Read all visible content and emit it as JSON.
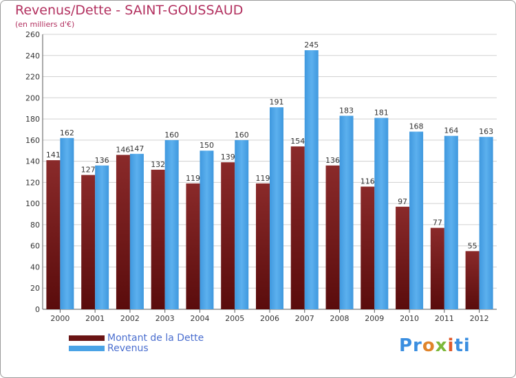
{
  "title": "Revenus/Dette - SAINT-GOUSSAUD",
  "subtitle": "(en milliers d'€)",
  "logo_text": "Proxiti",
  "colors": {
    "title": "#b2305f",
    "dette": "#7a1c1c",
    "revenus": "#4aa3e6",
    "legend_text": "#4a6ecf",
    "grid": "#d0d0d0"
  },
  "chart_data": {
    "type": "bar",
    "title": "Revenus/Dette - SAINT-GOUSSAUD",
    "ylabel": "(en milliers d'€)",
    "xlabel": "",
    "ylim": [
      0,
      260
    ],
    "yticks": [
      0,
      20,
      40,
      60,
      80,
      100,
      120,
      140,
      160,
      180,
      200,
      220,
      240,
      260
    ],
    "grid": true,
    "legend_position": "bottom-left",
    "categories": [
      "2000",
      "2001",
      "2002",
      "2003",
      "2004",
      "2005",
      "2006",
      "2007",
      "2008",
      "2009",
      "2010",
      "2011",
      "2012"
    ],
    "series": [
      {
        "name": "Montant de la Dette",
        "values": [
          141,
          127,
          146,
          132,
          119,
          139,
          119,
          154,
          136,
          116,
          97,
          77,
          55
        ]
      },
      {
        "name": "Revenus",
        "values": [
          162,
          136,
          147,
          160,
          150,
          160,
          191,
          245,
          183,
          181,
          168,
          164,
          163
        ]
      }
    ]
  }
}
